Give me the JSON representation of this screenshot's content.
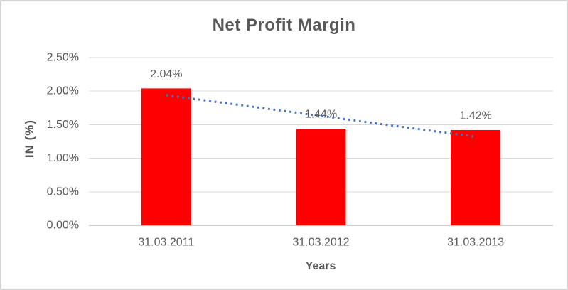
{
  "chart_data": {
    "type": "bar",
    "title": "Net Profit Margin",
    "xlabel": "Years",
    "ylabel": "IN (%)",
    "categories": [
      "31.03.2011",
      "31.03.2012",
      "31.03.2013"
    ],
    "values": [
      2.04,
      1.44,
      1.42
    ],
    "value_labels": [
      "2.04%",
      "1.44%",
      "1.42%"
    ],
    "ylim": [
      0,
      2.5
    ],
    "ytick_step": 0.5,
    "ytick_labels": [
      "0.00%",
      "0.50%",
      "1.00%",
      "1.50%",
      "2.00%",
      "2.50%"
    ],
    "grid": "horizontal",
    "legend": "none",
    "trendline": {
      "type": "linear",
      "style": "dotted",
      "start_value": 1.94,
      "end_value": 1.32,
      "color": "#4472C4"
    },
    "colors": {
      "bar": "#FF0000",
      "gridline": "#D9D9D9",
      "axis_line": "#CFCFCF",
      "text": "#595959",
      "background": "#FFFFFF",
      "border": "#D6D6D6"
    }
  }
}
